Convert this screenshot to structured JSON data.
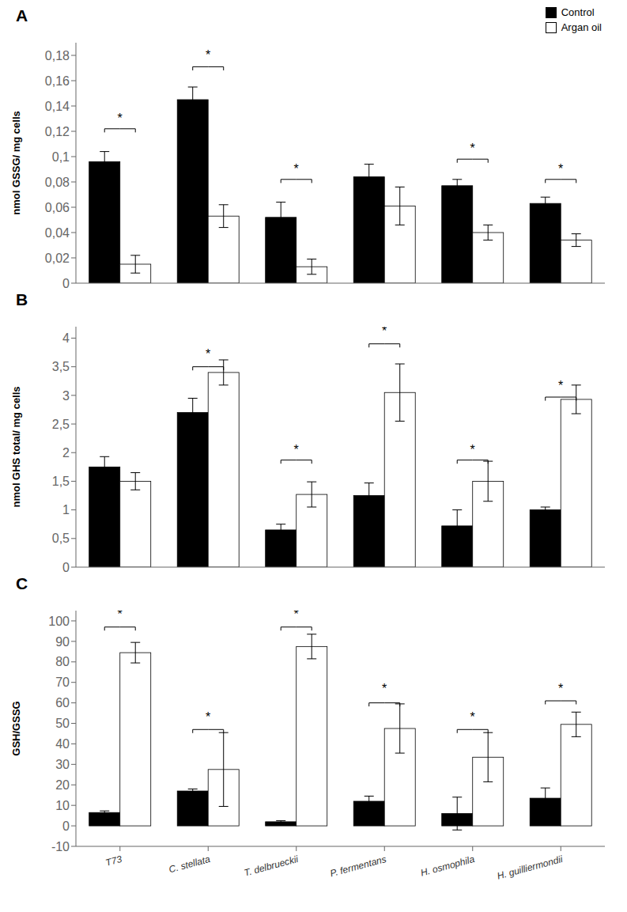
{
  "chart_data": [
    {
      "type": "bar",
      "title": "A",
      "ylabel": "nmol GSSG/ mg cells",
      "categories": [
        "T73",
        "C. stellata",
        "T. delbrueckii",
        "P. fermentans",
        "H. osmophila",
        "H. guilliermondii"
      ],
      "series": [
        {
          "name": "Control",
          "color": "#000000",
          "values": [
            0.096,
            0.145,
            0.052,
            0.084,
            0.077,
            0.063
          ],
          "errors": [
            0.008,
            0.01,
            0.012,
            0.01,
            0.005,
            0.005
          ]
        },
        {
          "name": "Argan oil",
          "color": "#ffffff",
          "values": [
            0.015,
            0.053,
            0.013,
            0.061,
            0.04,
            0.034
          ],
          "errors": [
            0.007,
            0.009,
            0.006,
            0.015,
            0.006,
            0.005
          ]
        }
      ],
      "ylim": [
        0,
        0.19
      ],
      "yticks": [
        0,
        {
          "value": 0.02,
          "label": "0,02"
        },
        {
          "value": 0.04,
          "label": "0,04"
        },
        {
          "value": 0.06,
          "label": "0,06"
        },
        {
          "value": 0.08,
          "label": "0,08"
        },
        {
          "value": 0.1,
          "label": "0,1"
        },
        {
          "value": 0.12,
          "label": "0,12"
        },
        {
          "value": 0.14,
          "label": "0,14"
        },
        {
          "value": 0.16,
          "label": "0,16"
        },
        {
          "value": 0.18,
          "label": "0,18"
        }
      ],
      "legend": "upper right",
      "tick_labels": "y",
      "annotations": [
        {
          "text": "*",
          "category": "T73",
          "y": 0.127,
          "bracket_y": 0.122
        },
        {
          "text": "*",
          "category": "C. stellata",
          "y": 0.177,
          "bracket_y": 0.171
        },
        {
          "text": "*",
          "category": "T. delbrueckii",
          "y": 0.087,
          "bracket_y": 0.082
        },
        {
          "text": "*",
          "category": "H. osmophila",
          "y": 0.103,
          "bracket_y": 0.098
        },
        {
          "text": "*",
          "category": "H. guilliermondii",
          "y": 0.087,
          "bracket_y": 0.082
        }
      ]
    },
    {
      "type": "bar",
      "title": "B",
      "ylabel": "nmol GHS total/ mg cells",
      "categories": [
        "T73",
        "C. stellata",
        "T. delbrueckii",
        "P. fermentans",
        "H. osmophila",
        "H. guilliermondii"
      ],
      "series": [
        {
          "name": "Control",
          "color": "#000000",
          "values": [
            1.75,
            2.7,
            0.65,
            1.25,
            0.72,
            1.0
          ],
          "errors": [
            0.18,
            0.25,
            0.1,
            0.22,
            0.28,
            0.05
          ]
        },
        {
          "name": "Argan oil",
          "color": "#ffffff",
          "values": [
            1.5,
            3.4,
            1.27,
            3.05,
            1.5,
            2.93
          ],
          "errors": [
            0.15,
            0.22,
            0.22,
            0.5,
            0.35,
            0.25
          ]
        }
      ],
      "ylim": [
        0,
        4.2
      ],
      "yticks": [
        0,
        {
          "value": 0.5,
          "label": "0,5"
        },
        1,
        {
          "value": 1.5,
          "label": "1,5"
        },
        2,
        {
          "value": 2.5,
          "label": "2,5"
        },
        3,
        {
          "value": 3.5,
          "label": "3,5"
        },
        4
      ],
      "tick_labels": "y",
      "annotations": [
        {
          "text": "*",
          "category": "C. stellata",
          "y": 3.65,
          "bracket_y": 3.5
        },
        {
          "text": "*",
          "category": "T. delbrueckii",
          "y": 1.98,
          "bracket_y": 1.87
        },
        {
          "text": "*",
          "category": "P. fermentans",
          "y": 4.05,
          "bracket_y": 3.9
        },
        {
          "text": "*",
          "category": "H. osmophila",
          "y": 1.98,
          "bracket_y": 1.87
        },
        {
          "text": "*",
          "category": "H. guilliermondii",
          "y": 3.1,
          "bracket_y": 2.97
        }
      ]
    },
    {
      "type": "bar",
      "title": "C",
      "ylabel": "GSH/GSSG",
      "categories": [
        "T73",
        "C. stellata",
        "T. delbrueckii",
        "P. fermentans",
        "H. osmophila",
        "H. guilliermondii"
      ],
      "series": [
        {
          "name": "Control",
          "color": "#000000",
          "values": [
            6.5,
            17.0,
            2.0,
            12.0,
            6.0,
            13.5
          ],
          "errors": [
            0.8,
            1.0,
            0.5,
            2.5,
            8.0,
            5.0
          ]
        },
        {
          "name": "Argan oil",
          "color": "#ffffff",
          "values": [
            84.5,
            27.5,
            87.5,
            47.5,
            33.5,
            49.5
          ],
          "errors": [
            5.0,
            18.0,
            6.0,
            12.0,
            12.0,
            6.0
          ]
        }
      ],
      "ylim": [
        -10,
        105
      ],
      "yticks": [
        -10,
        0,
        10,
        20,
        30,
        40,
        50,
        60,
        70,
        80,
        90,
        100
      ],
      "annotations": [
        {
          "text": "*",
          "category": "T73",
          "y": 101.0,
          "bracket_y": 97.0
        },
        {
          "text": "*",
          "category": "C. stellata",
          "y": 51.0,
          "bracket_y": 47.0
        },
        {
          "text": "*",
          "category": "T. delbrueckii",
          "y": 101.0,
          "bracket_y": 97.0
        },
        {
          "text": "*",
          "category": "P. fermentans",
          "y": 65.0,
          "bracket_y": 60.0
        },
        {
          "text": "*",
          "category": "H. osmophila",
          "y": 51.0,
          "bracket_y": 47.0
        },
        {
          "text": "*",
          "category": "H. guilliermondii",
          "y": 65.0,
          "bracket_y": 61.0
        }
      ]
    }
  ]
}
